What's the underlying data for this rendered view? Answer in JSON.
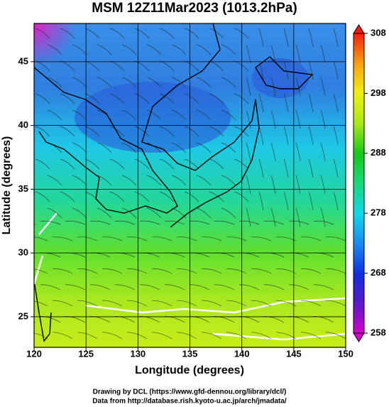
{
  "chart_data": {
    "type": "map",
    "title": "MSM 12Z11Mar2023 (1013.2hPa)",
    "x_label": "Longitude (degrees)",
    "y_label": "Latitude  (degrees)",
    "xlim": [
      120,
      150
    ],
    "xticks": [
      120,
      125,
      130,
      135,
      140,
      145,
      150
    ],
    "ylim": [
      22.6,
      48
    ],
    "yticks": [
      25,
      30,
      35,
      40,
      45
    ],
    "grid": true,
    "colorbar": {
      "lim": [
        258,
        308
      ],
      "ticks": [
        258,
        268,
        278,
        288,
        298,
        308
      ]
    },
    "footer": [
      "Drawing by DCL (https://www.gfd-dennou.org/library/dcl/)",
      "Data from http://database.rish.kyoto-u.ac.jp/arch/jmadata/"
    ]
  }
}
